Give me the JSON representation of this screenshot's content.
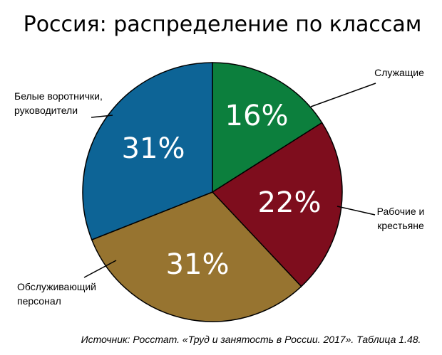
{
  "chart_data": {
    "type": "pie",
    "title": "Россия: распределение по классам",
    "categories": [
      "Служащие",
      "Рабочие и крестьяне",
      "Обслуживающий персонал",
      "Белые воротнички, руководители"
    ],
    "values": [
      16,
      22,
      31,
      31
    ],
    "value_labels": [
      "16%",
      "22%",
      "31%",
      "31%"
    ],
    "label_lines": [
      [
        "Служащие"
      ],
      [
        "Рабочие и",
        "крестьяне"
      ],
      [
        "Обслуживающий",
        "персонал"
      ],
      [
        "Белые воротнички,",
        "руководители"
      ]
    ],
    "colors": [
      "#0c7f3d",
      "#7e0d1d",
      "#977430",
      "#0d6496"
    ],
    "start_angle_deg": 0,
    "direction": "clockwise",
    "source": "Источник: Росстат. «Труд и занятость в России. 2017». Таблица 1.48."
  }
}
